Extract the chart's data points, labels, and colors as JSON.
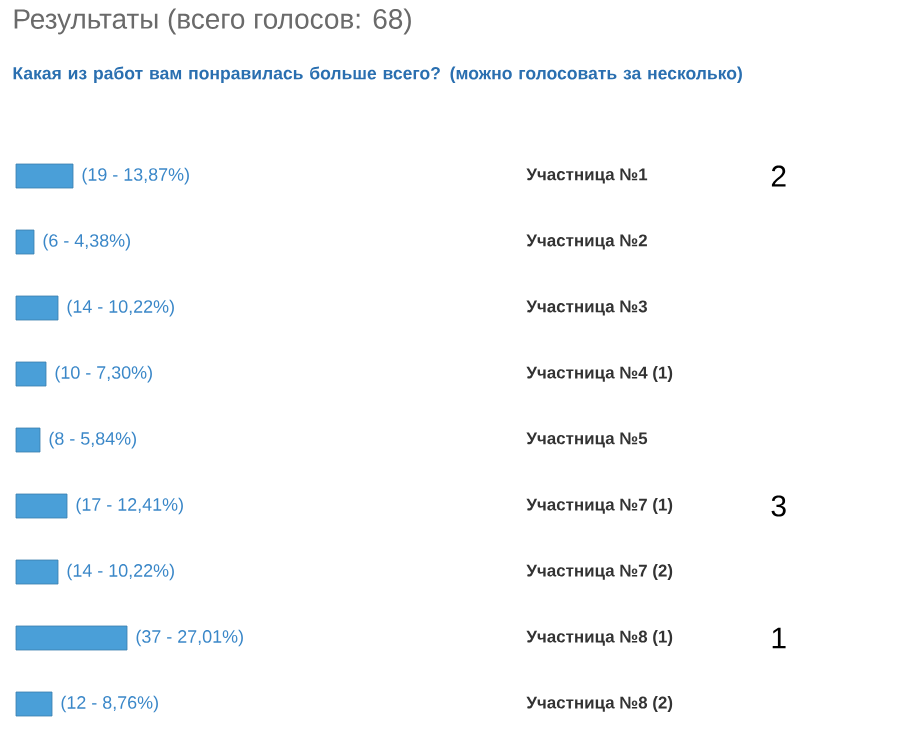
{
  "chart_data": {
    "type": "bar",
    "orientation": "horizontal",
    "title": "Результаты (всего голосов: 68)",
    "subtitle": "Какая из работ вам понравилась больше всего? (можно голосовать за несколько)",
    "categories": [
      "Участница №1",
      "Участница №2",
      "Участница №3",
      "Участница №4 (1)",
      "Участница №5",
      "Участница №7 (1)",
      "Участница №7 (2)",
      "Участница №8 (1)",
      "Участница №8 (2)"
    ],
    "values": [
      19,
      6,
      14,
      10,
      8,
      17,
      14,
      37,
      12
    ],
    "value_labels": [
      "(19 - 13,87%)",
      "(6 - 4,38%)",
      "(14 - 10,22%)",
      "(10 - 7,30%)",
      "(8 - 5,84%)",
      "(17 - 12,41%)",
      "(14 - 10,22%)",
      "(37 - 27,01%)",
      "(12 - 8,76%)"
    ],
    "color": "#4a9fd8",
    "annotations": [
      "2",
      "3",
      "1"
    ]
  }
}
